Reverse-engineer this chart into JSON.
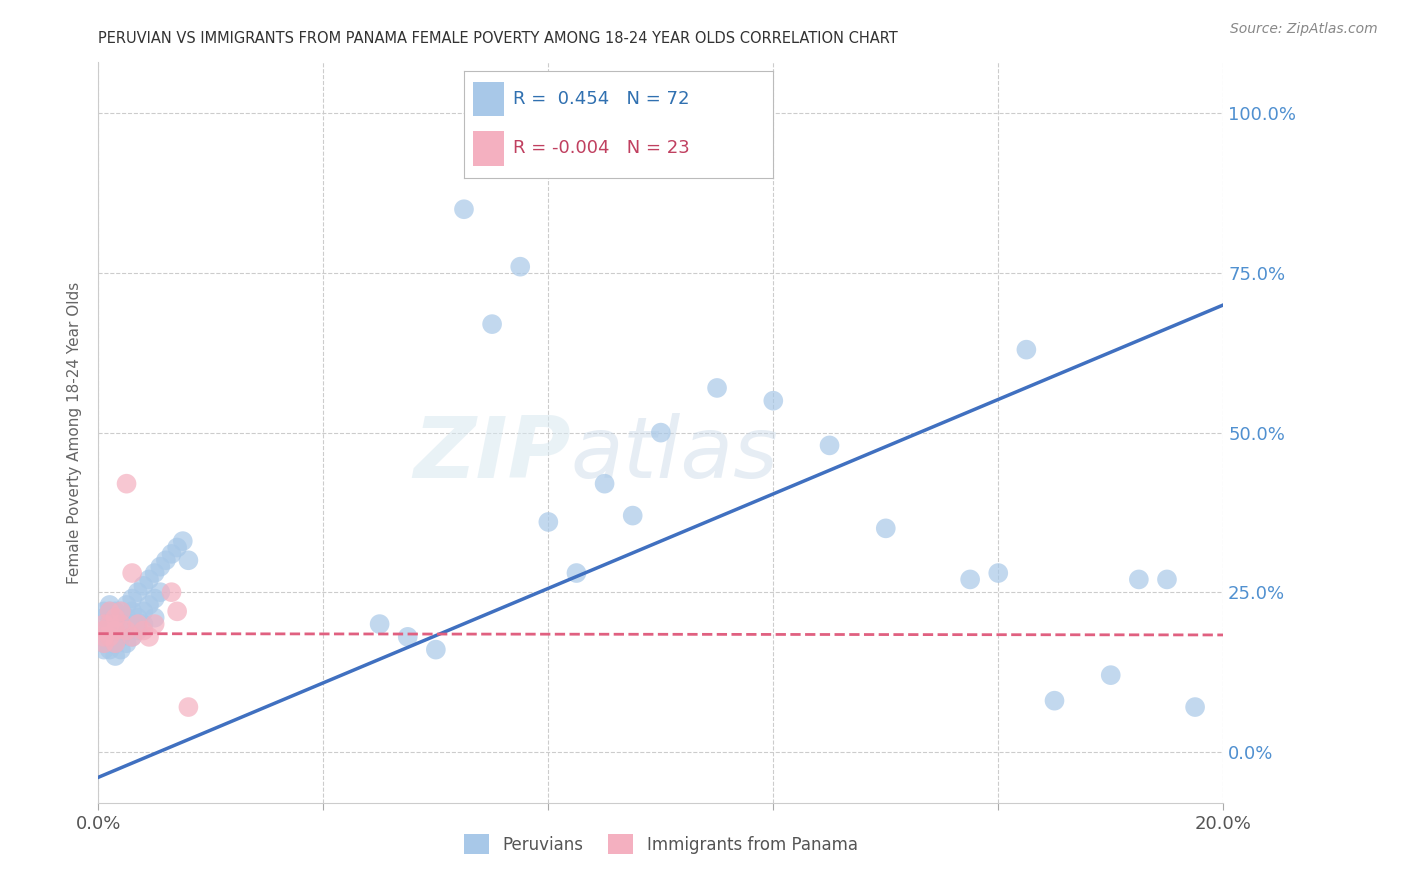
{
  "title": "PERUVIAN VS IMMIGRANTS FROM PANAMA FEMALE POVERTY AMONG 18-24 YEAR OLDS CORRELATION CHART",
  "source": "Source: ZipAtlas.com",
  "ylabel": "Female Poverty Among 18-24 Year Olds",
  "xlim": [
    0.0,
    0.2
  ],
  "ylim": [
    -0.08,
    1.08
  ],
  "yticks": [
    0.0,
    0.25,
    0.5,
    0.75,
    1.0
  ],
  "ytick_labels": [
    "0.0%",
    "25.0%",
    "50.0%",
    "75.0%",
    "100.0%"
  ],
  "xticks": [
    0.0,
    0.04,
    0.08,
    0.12,
    0.16,
    0.2
  ],
  "xtick_labels": [
    "0.0%",
    "",
    "",
    "",
    "",
    "20.0%"
  ],
  "blue_R": 0.454,
  "blue_N": 72,
  "pink_R": -0.004,
  "pink_N": 23,
  "blue_color": "#A8C8E8",
  "pink_color": "#F4B0C0",
  "blue_line_color": "#4070C0",
  "pink_line_color": "#E06080",
  "grid_color": "#CCCCCC",
  "watermark": "ZIPatlas",
  "blue_line_x0": 0.0,
  "blue_line_y0": -0.04,
  "blue_line_x1": 0.2,
  "blue_line_y1": 0.7,
  "pink_line_x0": 0.0,
  "pink_line_x1": 0.2,
  "pink_line_y0": 0.185,
  "pink_line_y1": 0.183,
  "blue_scatter_x": [
    0.001,
    0.001,
    0.001,
    0.001,
    0.001,
    0.001,
    0.002,
    0.002,
    0.002,
    0.002,
    0.002,
    0.002,
    0.003,
    0.003,
    0.003,
    0.003,
    0.003,
    0.003,
    0.004,
    0.004,
    0.004,
    0.004,
    0.004,
    0.005,
    0.005,
    0.005,
    0.005,
    0.006,
    0.006,
    0.006,
    0.006,
    0.007,
    0.007,
    0.007,
    0.008,
    0.008,
    0.008,
    0.009,
    0.009,
    0.01,
    0.01,
    0.01,
    0.011,
    0.011,
    0.012,
    0.013,
    0.014,
    0.015,
    0.016,
    0.05,
    0.055,
    0.06,
    0.065,
    0.07,
    0.075,
    0.08,
    0.085,
    0.09,
    0.095,
    0.1,
    0.11,
    0.12,
    0.13,
    0.14,
    0.155,
    0.16,
    0.165,
    0.17,
    0.18,
    0.185,
    0.19,
    0.195
  ],
  "blue_scatter_y": [
    0.22,
    0.19,
    0.17,
    0.21,
    0.18,
    0.16,
    0.2,
    0.18,
    0.22,
    0.16,
    0.19,
    0.23,
    0.2,
    0.17,
    0.21,
    0.15,
    0.19,
    0.22,
    0.21,
    0.18,
    0.2,
    0.16,
    0.22,
    0.23,
    0.19,
    0.21,
    0.17,
    0.24,
    0.2,
    0.18,
    0.22,
    0.25,
    0.21,
    0.19,
    0.26,
    0.22,
    0.2,
    0.27,
    0.23,
    0.28,
    0.24,
    0.21,
    0.29,
    0.25,
    0.3,
    0.31,
    0.32,
    0.33,
    0.3,
    0.2,
    0.18,
    0.16,
    0.85,
    0.67,
    0.76,
    0.36,
    0.28,
    0.42,
    0.37,
    0.5,
    0.57,
    0.55,
    0.48,
    0.35,
    0.27,
    0.28,
    0.63,
    0.08,
    0.12,
    0.27,
    0.27,
    0.07
  ],
  "pink_scatter_x": [
    0.001,
    0.001,
    0.001,
    0.001,
    0.002,
    0.002,
    0.002,
    0.003,
    0.003,
    0.003,
    0.004,
    0.004,
    0.005,
    0.005,
    0.006,
    0.006,
    0.007,
    0.008,
    0.009,
    0.01,
    0.013,
    0.014,
    0.016
  ],
  "pink_scatter_y": [
    0.2,
    0.19,
    0.18,
    0.17,
    0.22,
    0.2,
    0.18,
    0.21,
    0.19,
    0.17,
    0.22,
    0.2,
    0.42,
    0.19,
    0.28,
    0.18,
    0.2,
    0.19,
    0.18,
    0.2,
    0.25,
    0.22,
    0.07
  ]
}
